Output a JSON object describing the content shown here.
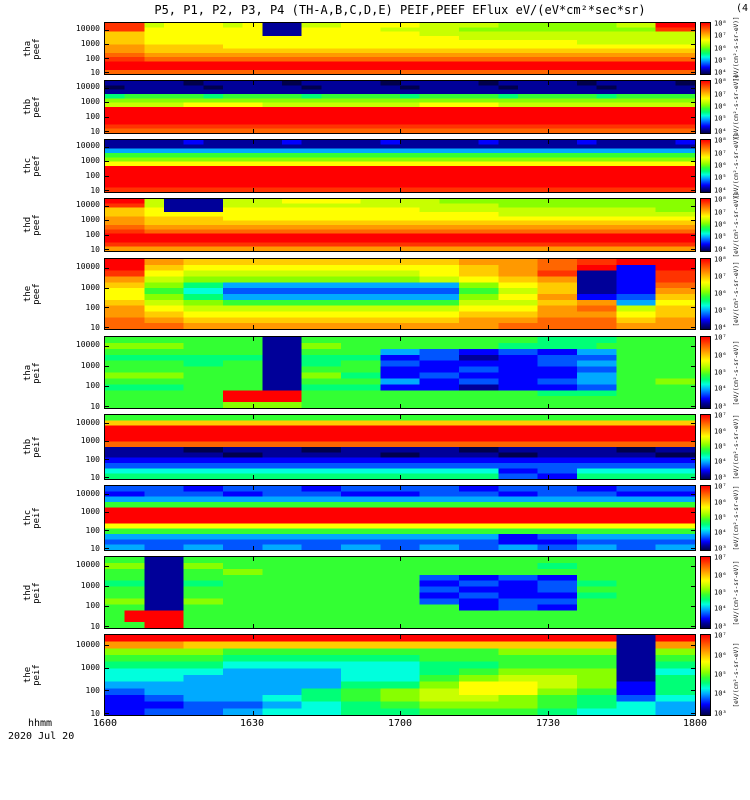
{
  "chart_data": {
    "type": "heatmap",
    "title": "P5, P1, P2, P3, P4 (TH-A,B,C,D,E) PEIF,PEEF EFlux eV/(eV*cm²*sec*sr)",
    "corner_note": "(4",
    "x_label": "hhmm",
    "date_label": "2020 Jul 20",
    "x_ticks": [
      "1600",
      "1630",
      "1700",
      "1730",
      "1800"
    ],
    "y_ticks": [
      "10000",
      "1000",
      "100",
      "10"
    ],
    "y_units": "eV",
    "y_scale": "log",
    "z_units_label": "[eV/(cm²-s-sr-eV)]",
    "legend_position": "right-colorbar-per-panel",
    "grid": "off",
    "palette": [
      "#00004d",
      "#000099",
      "#0000ff",
      "#0055ff",
      "#00aaff",
      "#00ffdd",
      "#00ff77",
      "#33ff33",
      "#88ff00",
      "#c8ff00",
      "#ffff00",
      "#ffcc00",
      "#ff9900",
      "#ff6600",
      "#ff3300",
      "#ff0000"
    ],
    "panels": [
      {
        "sc": "tha",
        "inst": "peef",
        "cb_ticks": [
          "10⁸",
          "10⁷",
          "10⁶",
          "10⁵",
          "10⁴"
        ],
        "grid": [
          "ee9aaa9a1199aaaa999988888899ff",
          "eeaaaaaa11aaaa99998888888888ee",
          "bbaaaaaa11aaaaaa99999999999999",
          "bbaaaaaaaaaaaaaaaa999999999999",
          "bbaaaaaaaaaaaaaaaaaaaaaa999999",
          "ccbbbbaaaaaaaaaaaaaaaaaaaaaaaa",
          "ccbbbbbbbbbbbbbbbbbbbbbbbbbbbb",
          "ddcccccccccccccccccccccccccccc",
          "eedddddddddddddddddddddddddddd",
          "ffffffffffffffffffffffffffffff",
          "ffffffffffffffffffffffffffffff",
          "dddddddddddddddddddddddddddddd"
        ]
      },
      {
        "sc": "thb",
        "inst": "peef",
        "cb_ticks": [
          "10⁸",
          "10⁷",
          "10⁶",
          "10⁵",
          "10⁴"
        ],
        "grid": [
          "111101111011110111101111011110",
          "011110111101111011110111101111",
          "111111111111111111111111111111",
          "677776777767777677776777767777",
          "888888888888888888888888888888",
          "9999aaaa99999999aaaa9999999999",
          "ffffffffffffffffffffffffffffff",
          "ffffffffffffffffffffffffffffff",
          "ffffffffffffffffffffffffffffff",
          "ffffffffffffffffffffffffffffff",
          "eeeeeeeeeeeeeeeeeeeeeeeeeeeeee",
          "dddddddddddddddddddddddddddddd"
        ]
      },
      {
        "sc": "thc",
        "inst": "peef",
        "cb_ticks": [
          "10⁸",
          "10⁷",
          "10⁶",
          "10⁵",
          "10⁴"
        ],
        "grid": [
          "111121111211112111121111211112",
          "111111111111111111111111111111",
          "444444444444444444444444444444",
          "777777777777777777777777777777",
          "888888888888888888888888888888",
          "aaaaaaaaaaaaaaaaaaaaaaaaaaaaaa",
          "ffffffffffffffffffffffffffffff",
          "ffffffffffffffffffffffffffffff",
          "ffffffffffffffffffffffffffffff",
          "ffffffffffffffffffffffffffffff",
          "ffffffffffffffffffffffffffffff",
          "eeeeeeeeeeeeeeeeeeeeeeeeeeeeee"
        ]
      },
      {
        "sc": "thd",
        "inst": "peef",
        "cb_ticks": [
          "10⁸",
          "10⁷",
          "10⁶",
          "10⁵",
          "10⁴"
        ],
        "grid": [
          "ff9111999aaaa99998888888888888",
          "ee9111999999999999998888888888",
          "bba111aaaaaaaaaa99999999999988",
          "bbaaaaaaaaaaaaaaaaaa9999999999",
          "ccbbbbaaaaaaaaaaaaaaaaaaaaaaaa",
          "ccbbbbbbbbbbbbbbbbbbbbbbbbbbbb",
          "ddcccccccccccccccccccccccccccc",
          "eedddddddddddddddddddddddddddd",
          "ffffffffffffffffffffffffffffff",
          "ffffffffffffffffffffffffffffff",
          "eeeeeeeeeeeeeeeeeeeeeeeeeeeeee",
          "cccccccccccccccccccccccccccccc"
        ]
      },
      {
        "sc": "the",
        "inst": "peef",
        "cb_ticks": [
          "10⁸",
          "10⁷",
          "10⁶",
          "10⁵",
          "10⁴"
        ],
        "grid": [
          "ffccbbbbbbbbbbbbbbccccddeeffff",
          "ffbbaaaaaaaaaaaaaabbccddff22ff",
          "eeaa999999999999aabbccee1122ee",
          "cc9988888888888899aabbcc1122ee",
          "bb886644444444444488aabb1122dd",
          "aa77553333333333337799bb1122cc",
          "aa886644444444444488aacc2233bb",
          "bb99887777777777779999bbcc44aa",
          "ccaa99999999999999aaaaccdd99bb",
          "ccbbaaaaaaaaaaaaaabbbbccccaabb",
          "ddccbbbbbbbbbbbbbbccccddddbbcc",
          "ddddccccccccccccccccddddddcccc"
        ]
      },
      {
        "sc": "tha",
        "inst": "peif",
        "cb_ticks": [
          "10⁷",
          "10⁶",
          "10⁵",
          "10⁴",
          "10³"
        ],
        "grid": [
          "777777771177777777777766667777",
          "888877771188777777776666677777",
          "777777771177774433223322447777",
          "666666661166662233112233337777",
          "777766771166773322222233447777",
          "777777771177772222332222337777",
          "888877771188662233222222447777",
          "777777771177774422332233447788",
          "666677771166662222112222337777",
          "777777ffff77777777777766667777",
          "777777ffff77777777777777777777",
          "777777888877777777777777777777"
        ]
      },
      {
        "sc": "thb",
        "inst": "peif",
        "cb_ticks": [
          "10⁷",
          "10⁶",
          "10⁵",
          "10⁴",
          "10³"
        ],
        "grid": [
          "777777777777777777777777777777",
          "bbbbbbbbbbbbbbbbbbbbbbbbbbbbbb",
          "ffffffffffffffffffffffffffffff",
          "ffffffffffffffffffffffffffffff",
          "ffffffffffffffffffffffffffffff",
          "dddddddddddddddddddddddddddddd",
          "111100111100111111001111110011",
          "111111001111110011110011111100",
          "222222222222222222222222222222",
          "333333333333333333333333333333",
          "555555555555555555552233555555",
          "666666666666666666663322666666"
        ]
      },
      {
        "sc": "thc",
        "inst": "peif",
        "cb_ticks": [
          "10⁷",
          "10⁶",
          "10⁵",
          "10⁴",
          "10³"
        ],
        "grid": [
          "333322333322333333223333223333",
          "223333223333222233332233332222",
          "444444444444444444444444444444",
          "777777777777777777777777777777",
          "ffffffffffffffffffffffffffffff",
          "ffffffffffffffffffffffffffffff",
          "ffffffffffffffffffffffffffffff",
          "aaaaaaaaaaaaaaaaaaaaaaaaaaaaaa",
          "777777777777777777777777777777",
          "444444444444444444442233444444",
          "333333333333333333332222333333",
          "443344334433443344334433443344"
        ]
      },
      {
        "sc": "thd",
        "inst": "peif",
        "cb_ticks": [
          "10⁷",
          "10⁶",
          "10⁵",
          "10⁴",
          "10³"
        ],
        "grid": [
          "771177777777777777777777777777",
          "881188777777777777777766777777",
          "771177887777777777777777777777",
          "771177777777777733223322777777",
          "661166777777777722332233667777",
          "771177777777777733222233777777",
          "771177777777777722332222667777",
          "881188777777777733223333777777",
          "771177777777777777223322777777",
          "7fff77777777777777777777777777",
          "7fff77777777777777777777777777",
          "77ff77777777777777777777777777"
        ]
      },
      {
        "sc": "the",
        "inst": "peif",
        "cb_ticks": [
          "10⁷",
          "10⁶",
          "10⁵",
          "10⁴",
          "10³"
        ],
        "grid": [
          "ffffffffffffffffffffffffff11ff",
          "ccccbbbbbbbbbbbbbbbbbbbbbb11cc",
          "888888777777777777778888881188",
          "777777666666666677777777771177",
          "666666555555555566667777771166",
          "555555444444555566778888881155",
          "555544444444555577889999881166",
          "444444444444666688aaaa99882266",
          "334444444466778899aaaa88772266",
          "223344445566778899998877663355",
          "222233334455667788888877665544",
          "223333445555666677777766555544"
        ]
      }
    ]
  }
}
